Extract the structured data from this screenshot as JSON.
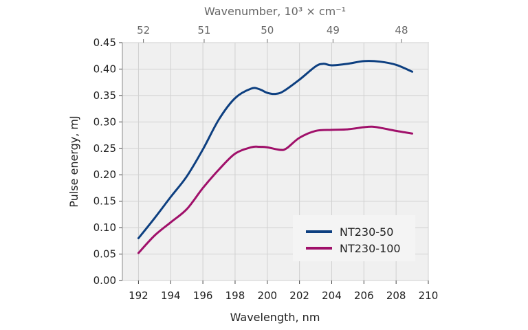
{
  "chart_data": {
    "type": "line",
    "xlabel": "Wavelength, nm",
    "ylabel": "Pulse energy, mJ",
    "top_xlabel": "Wavenumber, 10³ × cm⁻¹",
    "xlim": [
      191,
      210
    ],
    "ylim": [
      0,
      0.45
    ],
    "xticks": [
      "192",
      "194",
      "196",
      "198",
      "200",
      "202",
      "204",
      "206",
      "208",
      "210"
    ],
    "yticks": [
      "0.00",
      "0.05",
      "0.10",
      "0.15",
      "0.20",
      "0.25",
      "0.30",
      "0.35",
      "0.40",
      "0.45"
    ],
    "top_xticks": [
      "52",
      "51",
      "50",
      "49",
      "48"
    ],
    "grid": true,
    "legend_position": "bottom-right",
    "series": [
      {
        "name": "NT230-50",
        "color": "#0d3f80",
        "x": [
          192,
          193,
          194,
          195,
          196,
          197,
          198,
          199,
          199.5,
          200,
          200.5,
          201,
          202,
          203,
          203.5,
          204,
          205,
          206,
          207,
          208,
          209
        ],
        "y": [
          0.08,
          0.118,
          0.158,
          0.197,
          0.248,
          0.305,
          0.345,
          0.363,
          0.362,
          0.355,
          0.353,
          0.358,
          0.38,
          0.405,
          0.41,
          0.407,
          0.41,
          0.415,
          0.414,
          0.408,
          0.395
        ]
      },
      {
        "name": "NT230-100",
        "color": "#a0106a",
        "x": [
          192,
          193,
          194,
          195,
          196,
          197,
          198,
          199,
          199.5,
          200,
          200.8,
          201.2,
          202,
          203,
          204,
          205,
          206,
          206.5,
          207,
          208,
          209
        ],
        "y": [
          0.052,
          0.085,
          0.11,
          0.135,
          0.175,
          0.21,
          0.24,
          0.252,
          0.253,
          0.252,
          0.247,
          0.25,
          0.27,
          0.283,
          0.285,
          0.286,
          0.29,
          0.291,
          0.289,
          0.283,
          0.278
        ]
      }
    ]
  }
}
